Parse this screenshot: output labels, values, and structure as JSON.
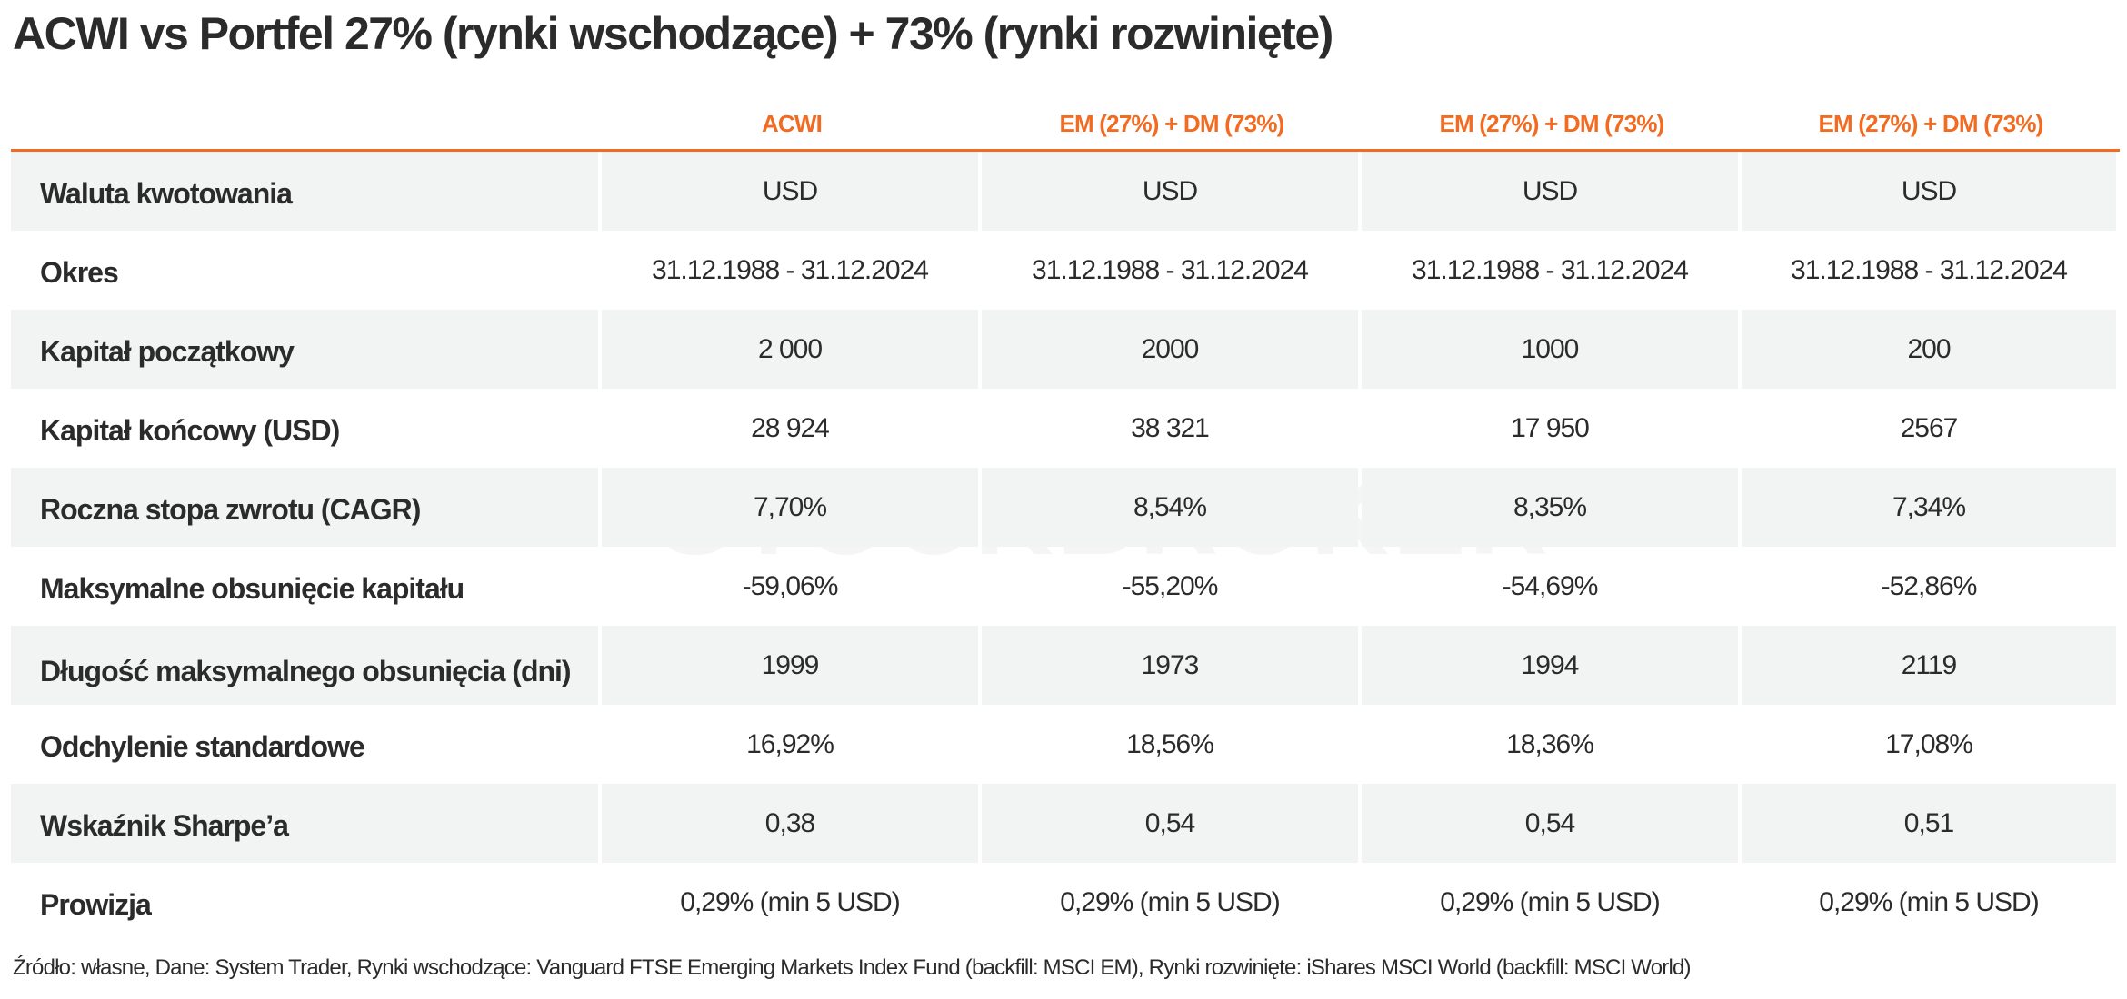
{
  "title": "ACWI vs Portfel 27% (rynki wschodzące) + 73% (rynki rozwinięte)",
  "watermark": "STOCKBROKER",
  "table": {
    "columns": [
      "ACWI",
      "EM (27%) + DM (73%)",
      "EM (27%) + DM (73%)",
      "EM (27%) + DM (73%)"
    ],
    "rows": [
      [
        "Waluta kwotowania",
        "USD",
        "USD",
        "USD",
        "USD"
      ],
      [
        "Okres",
        "31.12.1988 - 31.12.2024",
        "31.12.1988 - 31.12.2024",
        "31.12.1988 - 31.12.2024",
        "31.12.1988 - 31.12.2024"
      ],
      [
        "Kapitał początkowy",
        "2 000",
        "2000",
        "1000",
        "200"
      ],
      [
        "Kapitał końcowy (USD)",
        "28 924",
        "38 321",
        "17 950",
        "2567"
      ],
      [
        "Roczna stopa zwrotu (CAGR)",
        "7,70%",
        "8,54%",
        "8,35%",
        "7,34%"
      ],
      [
        "Maksymalne obsunięcie kapitału",
        "-59,06%",
        "-55,20%",
        "-54,69%",
        "-52,86%"
      ],
      [
        "Długość maksymalnego obsunięcia (dni)",
        "1999",
        "1973",
        "1994",
        "2119"
      ],
      [
        "Odchylenie standardowe",
        "16,92%",
        "18,56%",
        "18,36%",
        "17,08%"
      ],
      [
        "Wskaźnik Sharpe’a",
        "0,38",
        "0,54",
        "0,54",
        "0,51"
      ],
      [
        "Prowizja",
        "0,29% (min 5 USD)",
        "0,29% (min 5 USD)",
        "0,29% (min 5 USD)",
        "0,29% (min 5 USD)"
      ]
    ]
  },
  "footnote": "Źródło: własne, Dane: System Trader, Rynki wschodzące: Vanguard FTSE Emerging Markets Index Fund (backfill: MSCI EM), Rynki rozwinięte: iShares MSCI World (backfill: MSCI World)"
}
